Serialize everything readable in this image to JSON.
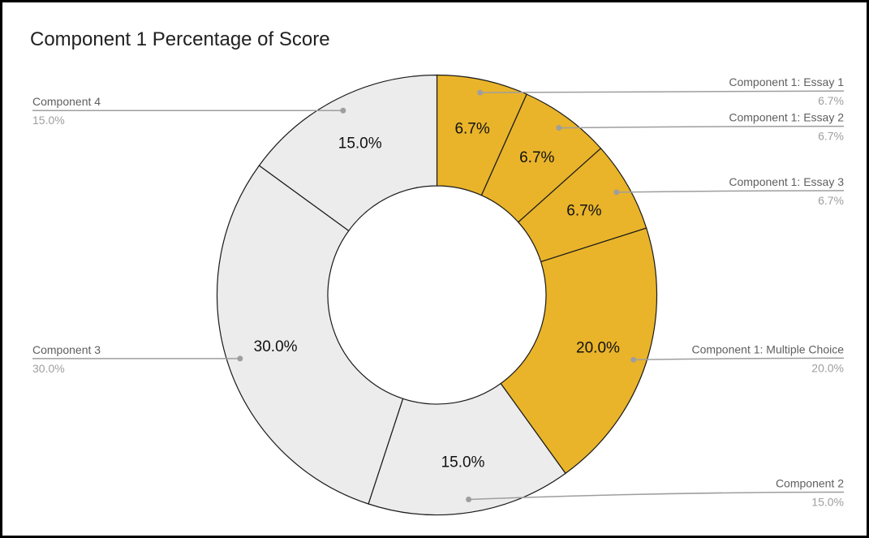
{
  "page": {
    "background": "#ffffff",
    "border_color": "#000000"
  },
  "chart_data": {
    "type": "pie",
    "donut": true,
    "hole_ratio": 0.5,
    "title": "Component 1 Percentage of Score",
    "legend_position": "outside-callout-labels",
    "slices": [
      {
        "label": "Component 1: Essay 1",
        "value": 6.7,
        "display": "6.7%",
        "color": "#E9B42A",
        "label_side": "right"
      },
      {
        "label": "Component 1: Essay 2",
        "value": 6.7,
        "display": "6.7%",
        "color": "#E9B42A",
        "label_side": "right"
      },
      {
        "label": "Component 1: Essay 3",
        "value": 6.7,
        "display": "6.7%",
        "color": "#E9B42A",
        "label_side": "right"
      },
      {
        "label": "Component 1: Multiple Choice",
        "value": 20.0,
        "display": "20.0%",
        "color": "#E9B42A",
        "label_side": "right"
      },
      {
        "label": "Component 2",
        "value": 15.0,
        "display": "15.0%",
        "color": "#ECECEC",
        "label_side": "right"
      },
      {
        "label": "Component 3",
        "value": 30.0,
        "display": "30.0%",
        "color": "#ECECEC",
        "label_side": "left"
      },
      {
        "label": "Component 4",
        "value": 15.0,
        "display": "15.0%",
        "color": "#ECECEC",
        "label_side": "left"
      }
    ],
    "colors": {
      "slice_border": "#1a1a1a",
      "callout_line": "#9e9e9e",
      "callout_dot": "#9e9e9e",
      "label_text": "#5f5f5f",
      "percent_text": "#9e9e9e",
      "value_text": "#111111",
      "title_text": "#212121"
    }
  }
}
